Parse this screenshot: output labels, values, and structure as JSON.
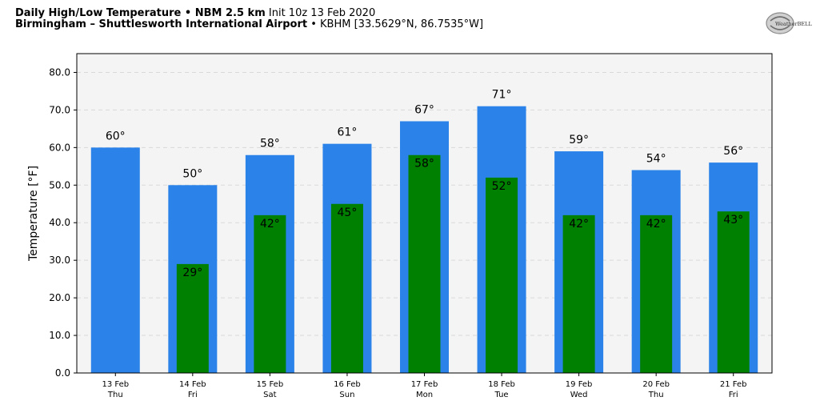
{
  "header": {
    "title_bold": "Daily High/Low Temperature • NBM 2.5 km",
    "init_text": "Init 10z 13 Feb 2020",
    "location_bold": "Birmingham – Shuttlesworth International Airport",
    "location_detail": "• KBHM [33.5629°N, 86.7535°W]"
  },
  "logo": {
    "text": "WeatherBELL",
    "icon": "weatherbell-logo"
  },
  "colors": {
    "high": "#2b83ea",
    "low": "#008000",
    "plot_bg": "#f4f4f4",
    "grid": "#d9d9d9"
  },
  "chart_data": {
    "type": "bar",
    "ylabel": "Temperature [°F]",
    "ylim": [
      0,
      85
    ],
    "yticks": [
      "0.0",
      "10.0",
      "20.0",
      "30.0",
      "40.0",
      "50.0",
      "60.0",
      "70.0",
      "80.0"
    ],
    "grid": true,
    "categories": [
      {
        "date": "13 Feb",
        "day": "Thu"
      },
      {
        "date": "14 Feb",
        "day": "Fri"
      },
      {
        "date": "15 Feb",
        "day": "Sat"
      },
      {
        "date": "16 Feb",
        "day": "Sun"
      },
      {
        "date": "17 Feb",
        "day": "Mon"
      },
      {
        "date": "18 Feb",
        "day": "Tue"
      },
      {
        "date": "19 Feb",
        "day": "Wed"
      },
      {
        "date": "20 Feb",
        "day": "Thu"
      },
      {
        "date": "21 Feb",
        "day": "Fri"
      }
    ],
    "series": [
      {
        "values": [
          60,
          50,
          58,
          61,
          67,
          71,
          59,
          54,
          56
        ],
        "labels": [
          "60°",
          "50°",
          "58°",
          "61°",
          "67°",
          "71°",
          "59°",
          "54°",
          "56°"
        ]
      },
      {
        "values": [
          null,
          29,
          42,
          45,
          58,
          52,
          42,
          42,
          43
        ],
        "labels": [
          "",
          "29°",
          "42°",
          "45°",
          "58°",
          "52°",
          "42°",
          "42°",
          "43°"
        ]
      }
    ]
  }
}
